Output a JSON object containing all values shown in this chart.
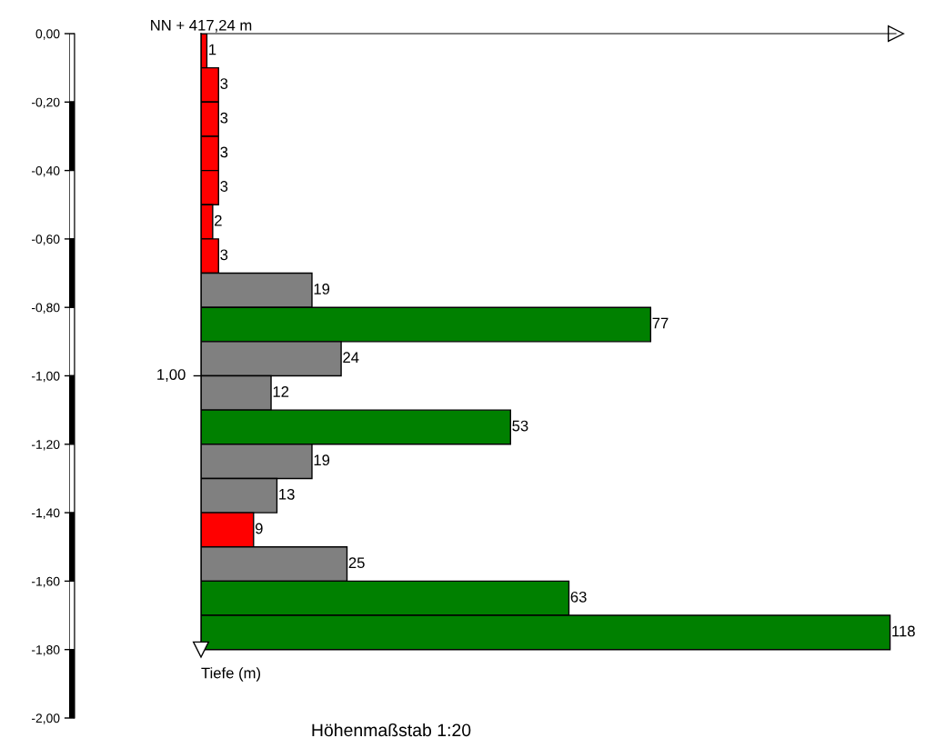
{
  "chart_data": {
    "type": "bar",
    "orientation": "horizontal",
    "title": "NN + 417,24 m",
    "ylabel": "Tiefe (m)",
    "annotations": [
      "Höhenmaßstab 1:20",
      "1,00"
    ],
    "x": [
      -0.05,
      -0.15,
      -0.25,
      -0.35,
      -0.45,
      -0.55,
      -0.65,
      -0.75,
      -0.85,
      -0.95,
      -1.05,
      -1.15,
      -1.25,
      -1.35,
      -1.45,
      -1.55,
      -1.65,
      -1.75
    ],
    "values": [
      1,
      3,
      3,
      3,
      3,
      2,
      3,
      19,
      77,
      24,
      12,
      53,
      19,
      13,
      9,
      25,
      63,
      118
    ],
    "colors": [
      "#ff0000",
      "#ff0000",
      "#ff0000",
      "#ff0000",
      "#ff0000",
      "#ff0000",
      "#ff0000",
      "#808080",
      "#008000",
      "#808080",
      "#808080",
      "#008000",
      "#808080",
      "#808080",
      "#ff0000",
      "#808080",
      "#008000",
      "#008000"
    ],
    "data_labels": true,
    "xlim": [
      0,
      119
    ],
    "ylim": [
      -2,
      0
    ],
    "yticks": [
      {
        "value": 0,
        "label": "0,00"
      },
      {
        "value": -0.2,
        "label": "-0,20"
      },
      {
        "value": -0.4,
        "label": "-0,40"
      },
      {
        "value": -0.6,
        "label": "-0,60"
      },
      {
        "value": -0.8,
        "label": "-0,80"
      },
      {
        "value": -1,
        "label": "-1,00"
      },
      {
        "value": -1.2,
        "label": "-1,20"
      },
      {
        "value": -1.4,
        "label": "-1,40"
      },
      {
        "value": -1.6,
        "label": "-1,60"
      },
      {
        "value": -1.8,
        "label": "-1,80"
      },
      {
        "value": -2,
        "label": "-2,00"
      }
    ],
    "tick_labels": "y"
  }
}
